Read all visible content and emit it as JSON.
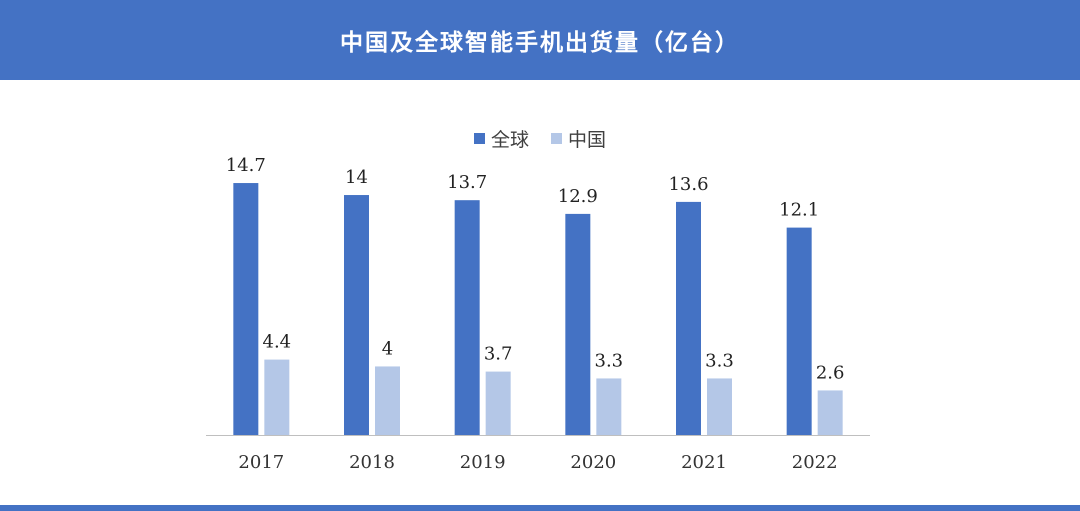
{
  "title": "中国及全球智能手机出货量（亿台）",
  "colors": {
    "header": "#4472C4",
    "global": "#4472C4",
    "china": "#B4C7E7",
    "axis": "#BFBFBF"
  },
  "chart_data": {
    "type": "bar",
    "categories": [
      "2017",
      "2018",
      "2019",
      "2020",
      "2021",
      "2022"
    ],
    "series": [
      {
        "name": "全球",
        "values": [
          14.7,
          14,
          13.7,
          12.9,
          13.6,
          12.1
        ]
      },
      {
        "name": "中国",
        "values": [
          4.4,
          4,
          3.7,
          3.3,
          3.3,
          2.6
        ]
      }
    ],
    "ylim": [
      0,
      15
    ],
    "grid": false,
    "legend_position": "top-center",
    "data_labels": true
  }
}
